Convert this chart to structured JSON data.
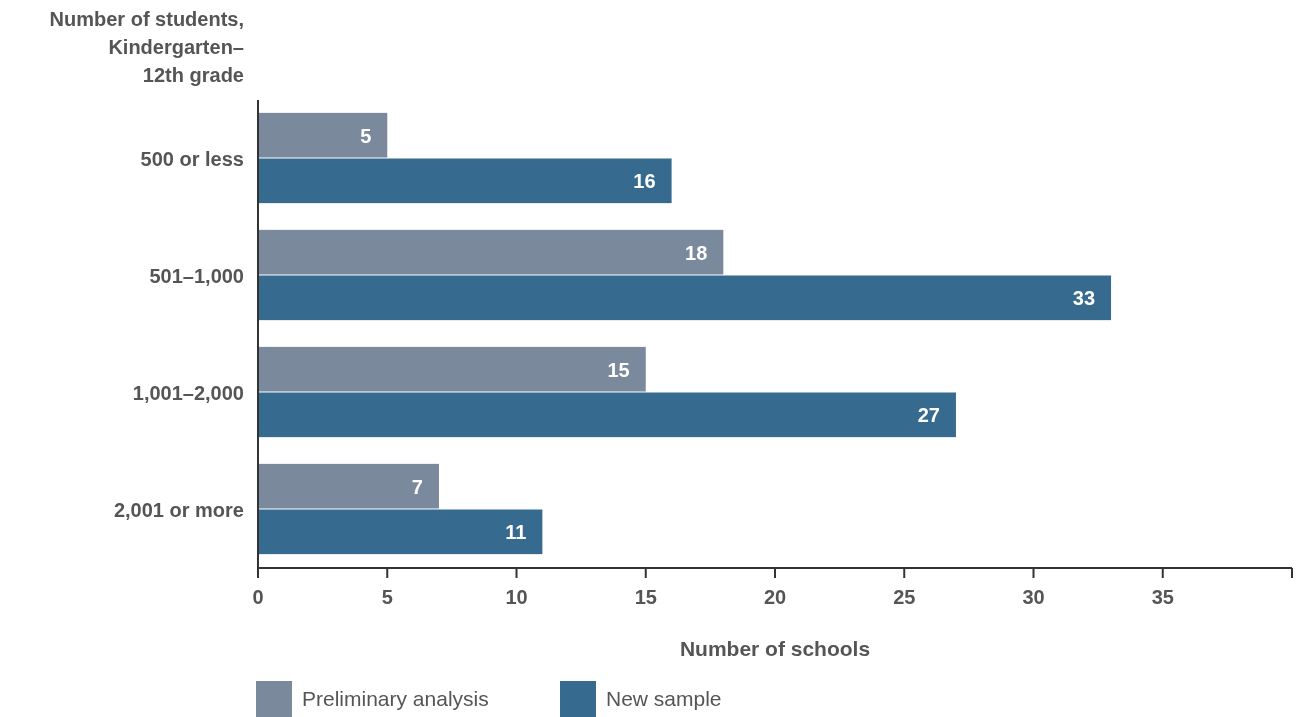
{
  "chart_data": {
    "type": "bar",
    "orientation": "horizontal",
    "ylabel": "Number of students, Kindergarten–12th grade",
    "xlabel": "Number of schools",
    "categories": [
      "500 or less",
      "501–1,000",
      "1,001–2,000",
      "2,001 or more"
    ],
    "series": [
      {
        "name": "Preliminary analysis",
        "color": "#7a899c",
        "values": [
          5,
          18,
          15,
          7
        ]
      },
      {
        "name": "New sample",
        "color": "#376a8f",
        "values": [
          16,
          33,
          27,
          11
        ]
      }
    ],
    "xlim": [
      0,
      40
    ],
    "xticks": [
      0,
      5,
      10,
      15,
      20,
      25,
      30,
      35,
      {
        "value": 40,
        "label": null
      }
    ],
    "data_labels": true,
    "legend": "bottom left",
    "grid": false
  }
}
